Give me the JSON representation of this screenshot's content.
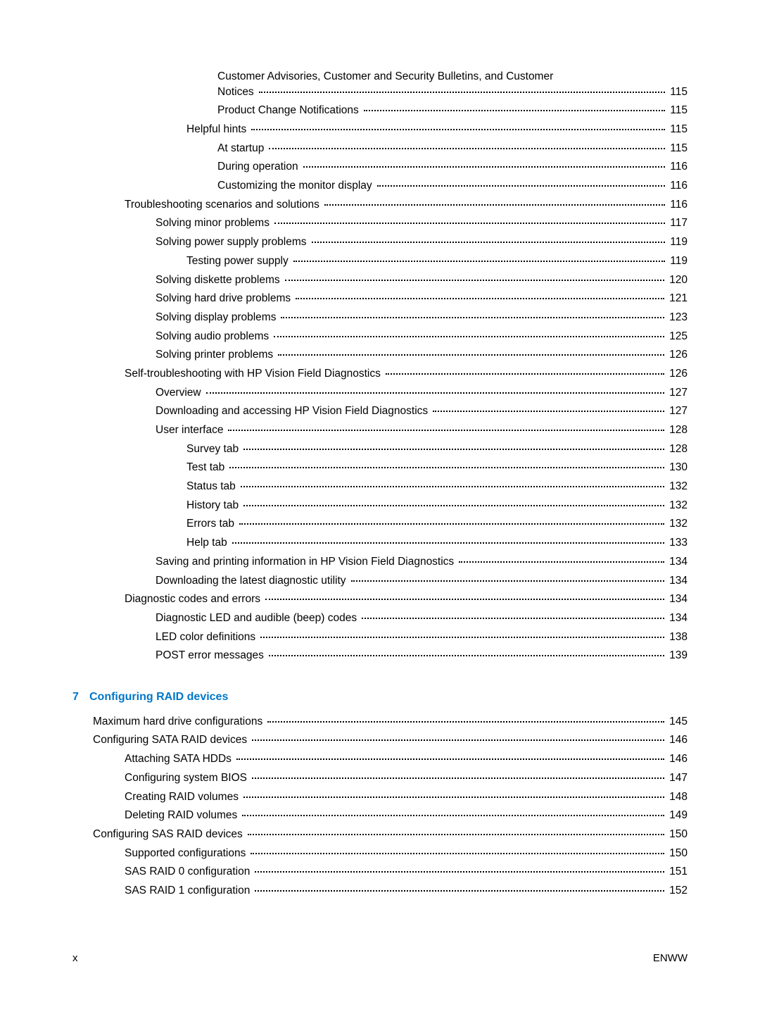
{
  "colors": {
    "text": "#000000",
    "heading": "#0077c8",
    "background": "#ffffff",
    "dots": "#000000"
  },
  "typography": {
    "body_fontsize_pt": 11,
    "heading_fontsize_pt": 12,
    "font_family": "Arial"
  },
  "toc_block1": [
    {
      "indent": 4,
      "label": "Customer Advisories, Customer and Security Bulletins, and Customer Notices",
      "page": "115",
      "wrap": true
    },
    {
      "indent": 4,
      "label": "Product Change Notifications",
      "page": "115"
    },
    {
      "indent": 3,
      "label": "Helpful hints",
      "page": "115"
    },
    {
      "indent": 4,
      "label": "At startup",
      "page": "115"
    },
    {
      "indent": 4,
      "label": "During operation",
      "page": "116"
    },
    {
      "indent": 4,
      "label": "Customizing the monitor display",
      "page": "116"
    },
    {
      "indent": 1,
      "label": "Troubleshooting scenarios and solutions",
      "page": "116"
    },
    {
      "indent": 2,
      "label": "Solving minor problems",
      "page": "117"
    },
    {
      "indent": 2,
      "label": "Solving power supply problems",
      "page": "119"
    },
    {
      "indent": 3,
      "label": "Testing power supply",
      "page": "119"
    },
    {
      "indent": 2,
      "label": "Solving diskette problems",
      "page": "120"
    },
    {
      "indent": 2,
      "label": "Solving hard drive problems",
      "page": "121"
    },
    {
      "indent": 2,
      "label": "Solving display problems",
      "page": "123"
    },
    {
      "indent": 2,
      "label": "Solving audio problems",
      "page": "125"
    },
    {
      "indent": 2,
      "label": "Solving printer problems",
      "page": "126"
    },
    {
      "indent": 1,
      "label": "Self-troubleshooting with HP Vision Field Diagnostics",
      "page": "126"
    },
    {
      "indent": 2,
      "label": "Overview",
      "page": "127"
    },
    {
      "indent": 2,
      "label": "Downloading and accessing HP Vision Field Diagnostics",
      "page": "127"
    },
    {
      "indent": 2,
      "label": "User interface",
      "page": "128"
    },
    {
      "indent": 3,
      "label": "Survey tab",
      "page": "128"
    },
    {
      "indent": 3,
      "label": "Test tab",
      "page": "130"
    },
    {
      "indent": 3,
      "label": "Status tab",
      "page": "132"
    },
    {
      "indent": 3,
      "label": "History tab",
      "page": "132"
    },
    {
      "indent": 3,
      "label": "Errors tab",
      "page": "132"
    },
    {
      "indent": 3,
      "label": "Help tab",
      "page": "133"
    },
    {
      "indent": 2,
      "label": "Saving and printing information in HP Vision Field Diagnostics",
      "page": "134"
    },
    {
      "indent": 2,
      "label": "Downloading the latest diagnostic utility",
      "page": "134"
    },
    {
      "indent": 1,
      "label": "Diagnostic codes and errors",
      "page": "134"
    },
    {
      "indent": 2,
      "label": "Diagnostic LED and audible (beep) codes",
      "page": "134"
    },
    {
      "indent": 2,
      "label": "LED color definitions",
      "page": "138"
    },
    {
      "indent": 2,
      "label": "POST error messages",
      "page": "139"
    }
  ],
  "section7": {
    "number": "7",
    "title": "Configuring RAID devices"
  },
  "toc_block2": [
    {
      "indent": 0,
      "label": "Maximum hard drive configurations",
      "page": "145"
    },
    {
      "indent": 0,
      "label": "Configuring SATA RAID devices",
      "page": "146"
    },
    {
      "indent": 1,
      "label": "Attaching SATA HDDs",
      "page": "146"
    },
    {
      "indent": 1,
      "label": "Configuring system BIOS",
      "page": "147"
    },
    {
      "indent": 1,
      "label": "Creating RAID volumes",
      "page": "148"
    },
    {
      "indent": 1,
      "label": "Deleting RAID volumes",
      "page": "149"
    },
    {
      "indent": 0,
      "label": "Configuring SAS RAID devices",
      "page": "150"
    },
    {
      "indent": 1,
      "label": "Supported configurations",
      "page": "150"
    },
    {
      "indent": 1,
      "label": "SAS RAID 0 configuration",
      "page": "151"
    },
    {
      "indent": 1,
      "label": "SAS RAID 1 configuration",
      "page": "152"
    }
  ],
  "footer": {
    "left": "x",
    "right": "ENWW"
  }
}
